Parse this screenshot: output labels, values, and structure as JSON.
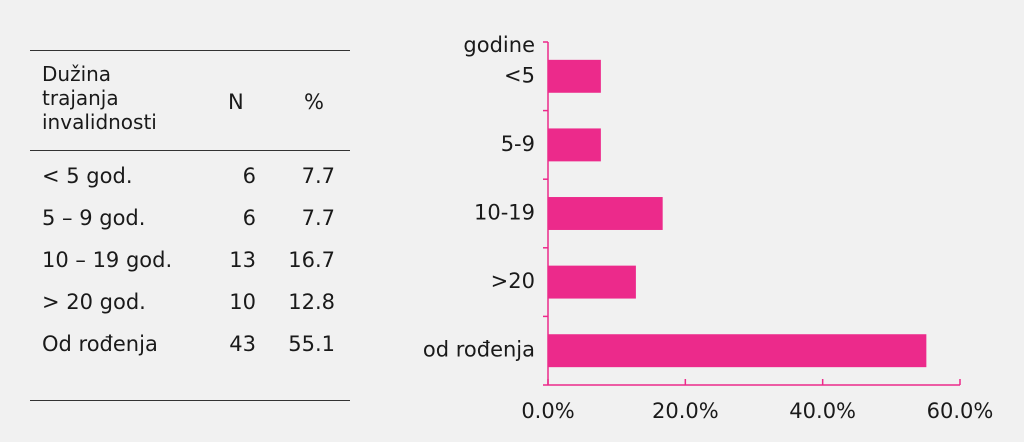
{
  "table": {
    "header": [
      "Dužina trajanja invalidnosti",
      "N",
      "%"
    ],
    "rows": [
      [
        "< 5 god.",
        6,
        7.7
      ],
      [
        "5 – 9 god.",
        6,
        7.7
      ],
      [
        "10 – 19 god.",
        13,
        16.7
      ],
      [
        "> 20 god.",
        10,
        12.8
      ],
      [
        "Od rođenja",
        43,
        55.1
      ]
    ]
  },
  "chart_data": {
    "type": "bar",
    "orientation": "horizontal",
    "y_label": "godine",
    "categories": [
      "<5",
      "5-9",
      "10-19",
      ">20",
      "od rođenja"
    ],
    "values": [
      7.7,
      7.7,
      16.7,
      12.8,
      55.1
    ],
    "color": "#ec2a8b",
    "xlim": [
      0,
      60
    ],
    "xticks": [
      {
        "value": 0,
        "label": "0.0%"
      },
      {
        "value": 20,
        "label": "20.0%"
      },
      {
        "value": 40,
        "label": "40.0%"
      },
      {
        "value": 60,
        "label": "60.0%"
      }
    ]
  }
}
